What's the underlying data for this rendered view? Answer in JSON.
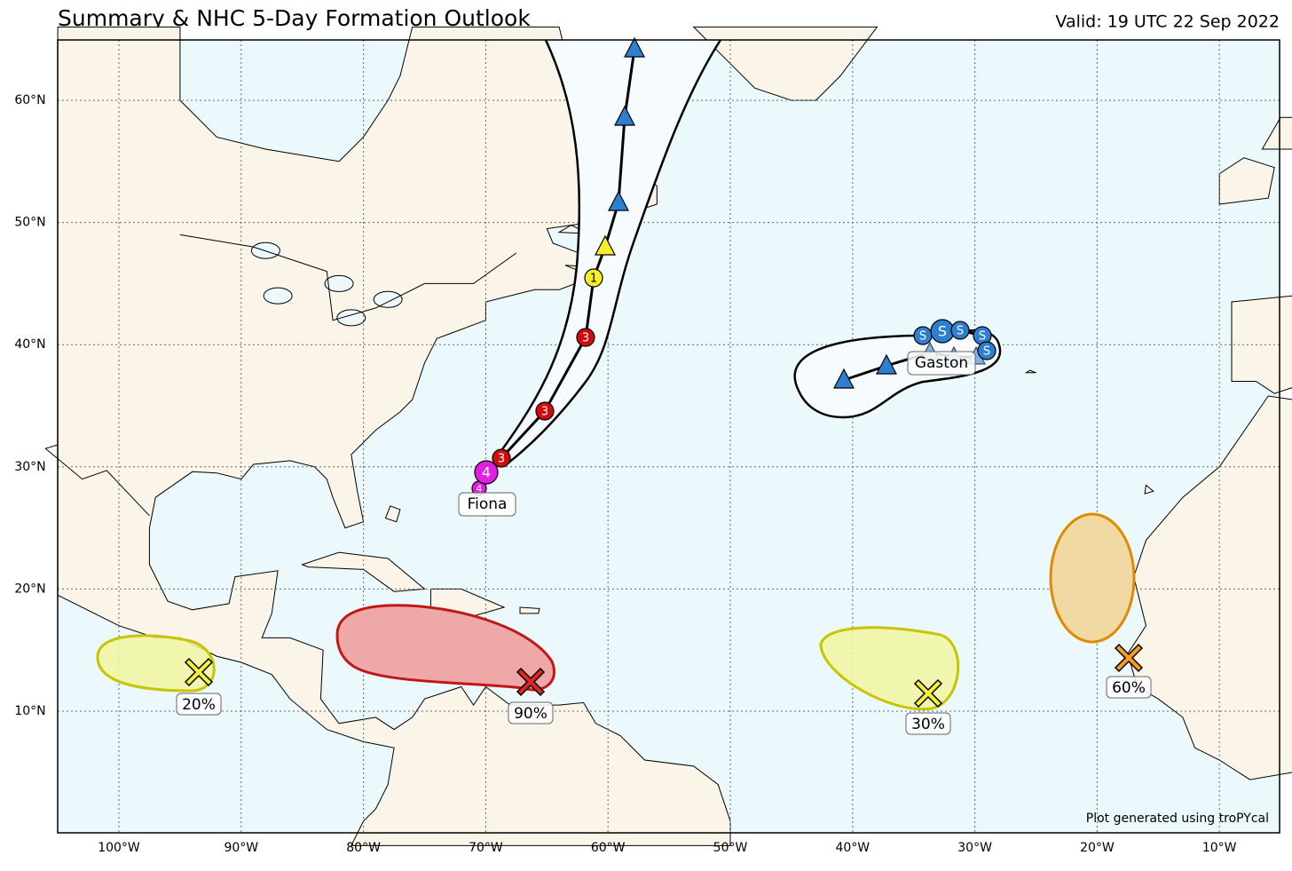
{
  "header": {
    "title": "Summary & NHC 5-Day Formation Outlook",
    "valid": "Valid: 19 UTC 22 Sep 2022"
  },
  "map": {
    "lat_labels": [
      "60°N",
      "50°N",
      "40°N",
      "30°N",
      "20°N",
      "10°N"
    ],
    "lon_labels": [
      "100°W",
      "90°W",
      "80°W",
      "70°W",
      "60°W",
      "50°W",
      "40°W",
      "30°W",
      "20°W",
      "10°W"
    ],
    "storms": [
      {
        "name": "Fiona",
        "markers": [
          "4",
          "4",
          "3",
          "3",
          "3",
          "1"
        ]
      },
      {
        "name": "Gaston",
        "markers": [
          "S",
          "S",
          "S",
          "S",
          "S"
        ]
      }
    ],
    "outlooks": [
      {
        "label": "20%"
      },
      {
        "label": "90%"
      },
      {
        "label": "30%"
      },
      {
        "label": "60%"
      }
    ],
    "credit": "Plot generated using troPYcal"
  }
}
